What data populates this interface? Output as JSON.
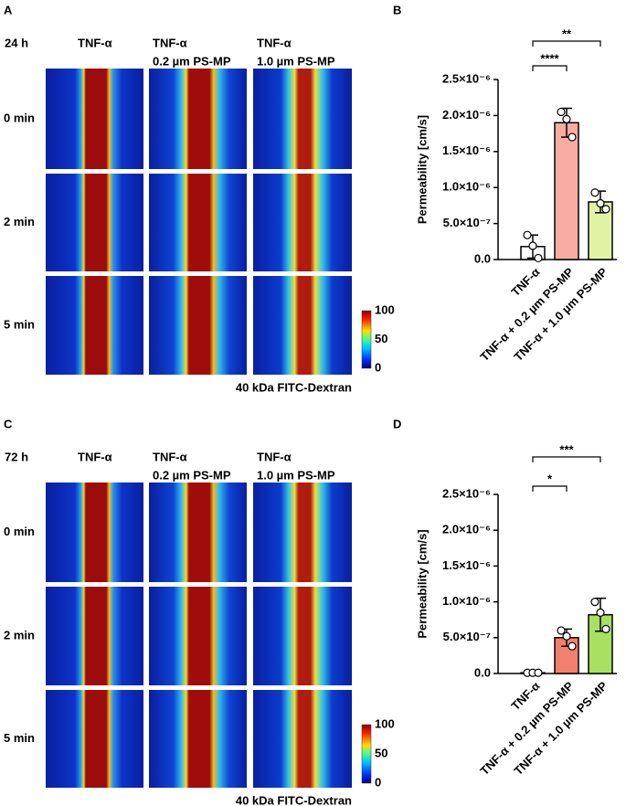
{
  "panels": [
    {
      "letter": "A",
      "time": "24 h",
      "columns": [
        [
          "TNF-α"
        ],
        [
          "TNF-α",
          "0.2 µm PS-MP"
        ],
        [
          "TNF-α",
          "1.0 µm PS-MP"
        ]
      ],
      "rows": [
        "0 min",
        "2 min",
        "5 min"
      ],
      "colorbar": [
        "100",
        "50",
        "0"
      ],
      "caption": "40 kDa FITC-Dextran"
    },
    {
      "letter": "C",
      "time": "72 h",
      "columns": [
        [
          "TNF-α"
        ],
        [
          "TNF-α",
          "0.2 µm PS-MP"
        ],
        [
          "TNF-α",
          "1.0 µm PS-MP"
        ]
      ],
      "rows": [
        "0 min",
        "2 min",
        "5 min"
      ],
      "colorbar": [
        "100",
        "50",
        "0"
      ],
      "caption": "40 kDa FITC-Dextran"
    }
  ],
  "chart_data": [
    {
      "type": "bar",
      "label": "B",
      "y_label": "Permeability [cm/s]",
      "categories": [
        "TNF-α",
        "TNF-α + 0.2 µm PS-MP",
        "TNF-α + 1.0 µm PS-MP"
      ],
      "values": [
        1.8e-07,
        1.9e-06,
        8e-07
      ],
      "errors": [
        1.6e-07,
        2e-07,
        1.5e-07
      ],
      "points": [
        [
          3.4e-07,
          1.9e-07,
          2e-08
        ],
        [
          2.05e-06,
          1.95e-06,
          1.7e-06
        ],
        [
          9.3e-07,
          7.8e-07,
          7e-07
        ]
      ],
      "colors": [
        "#ffffff",
        "#f8aca2",
        "#e2f2a4"
      ],
      "ylim": [
        0,
        2.5e-06
      ],
      "yticks": [
        {
          "value": 0,
          "label": "0.0"
        },
        {
          "value": 5e-07,
          "label": "5.0×10⁻⁷"
        },
        {
          "value": 1e-06,
          "label": "1.0×10⁻⁶"
        },
        {
          "value": 1.5e-06,
          "label": "1.5×10⁻⁶"
        },
        {
          "value": 2e-06,
          "label": "2.0×10⁻⁶"
        },
        {
          "value": 2.5e-06,
          "label": "2.5×10⁻⁶"
        }
      ],
      "annotations": [
        "****",
        "**"
      ]
    },
    {
      "type": "bar",
      "label": "D",
      "y_label": "Permeability [cm/s]",
      "categories": [
        "TNF-α",
        "TNF-α + 0.2 µm PS-MP",
        "TNF-α + 1.0 µm PS-MP"
      ],
      "values": [
        1e-08,
        5e-07,
        8.2e-07
      ],
      "errors": [
        1e-09,
        1.2e-07,
        2.3e-07
      ],
      "points": [
        [
          1e-08,
          1e-08,
          1e-08
        ],
        [
          6e-07,
          5.2e-07,
          3.8e-07
        ],
        [
          1e-06,
          8.5e-07,
          6.2e-07
        ]
      ],
      "colors": [
        "#ffffff",
        "#f2806f",
        "#a8e062"
      ],
      "ylim": [
        0,
        2.5e-06
      ],
      "yticks": [
        {
          "value": 0,
          "label": "0.0"
        },
        {
          "value": 5e-07,
          "label": "5.0×10⁻⁷"
        },
        {
          "value": 1e-06,
          "label": "1.0×10⁻⁶"
        },
        {
          "value": 1.5e-06,
          "label": "1.5×10⁻⁶"
        },
        {
          "value": 2e-06,
          "label": "2.0×10⁻⁶"
        },
        {
          "value": 2.5e-06,
          "label": "2.5×10⁻⁶"
        }
      ],
      "annotations": [
        "*",
        "***"
      ]
    }
  ]
}
